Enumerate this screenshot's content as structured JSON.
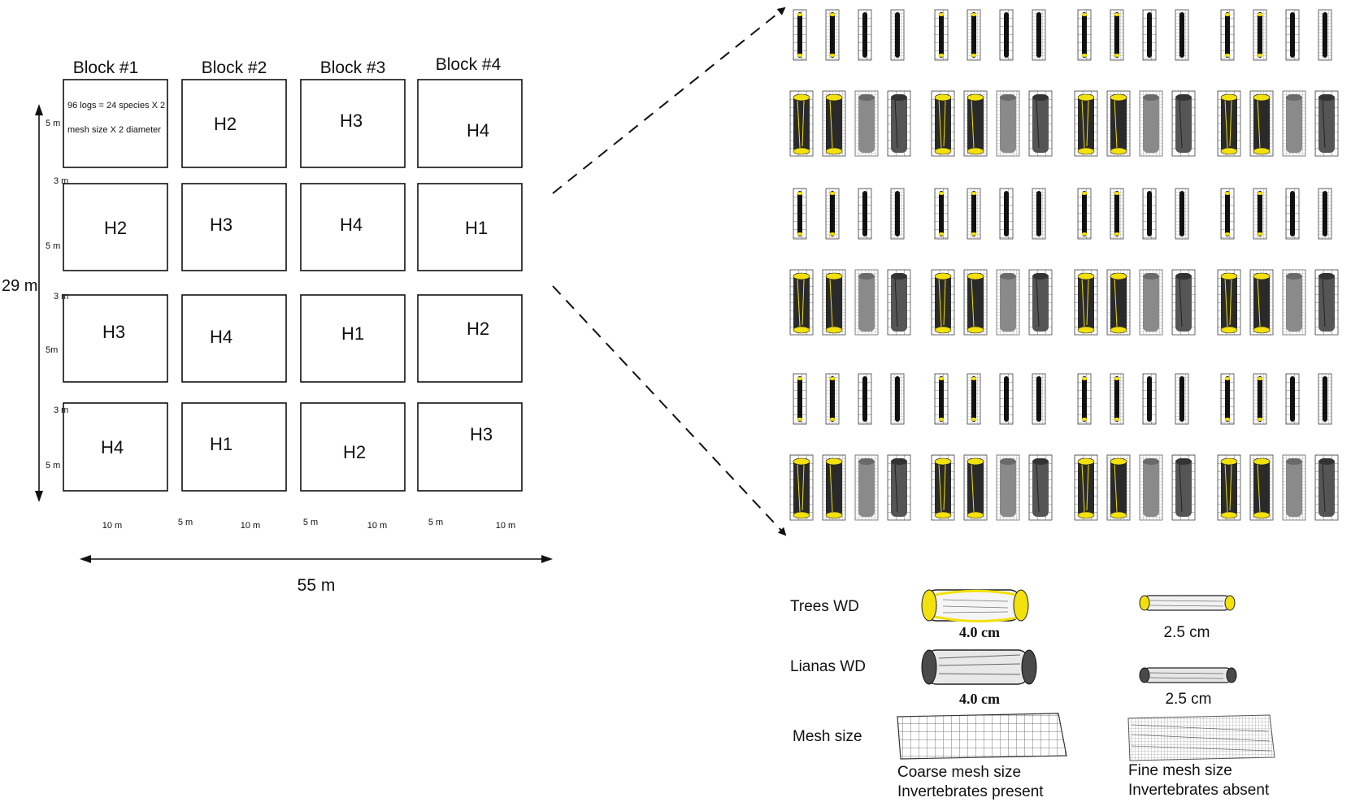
{
  "layout_panel": {
    "blocks": [
      {
        "title": "Block #1",
        "plots": [
          "",
          "H2",
          "H3",
          "H4"
        ],
        "note_lines": [
          "96 logs = 24 species X 2",
          "mesh size X 2 diameter"
        ]
      },
      {
        "title": "Block #2",
        "plots": [
          "H2",
          "H3",
          "H4",
          "H1"
        ]
      },
      {
        "title": "Block #3",
        "plots": [
          "H3",
          "H4",
          "H1",
          "H2"
        ]
      },
      {
        "title": "Block #4",
        "plots": [
          "H4",
          "H1",
          "H2",
          "H3"
        ]
      }
    ],
    "row_heights": [
      "5 m",
      "5 m",
      "5m",
      "5 m"
    ],
    "row_gaps": [
      "3 m",
      "3 m",
      "3 m"
    ],
    "column_widths": [
      "10 m",
      "10 m",
      "10 m",
      "10 m"
    ],
    "column_gaps": [
      "5 m",
      "5 m",
      "5 m"
    ],
    "total_height": "29 m",
    "total_width": "55 m"
  },
  "legend": {
    "trees_label": "Trees WD",
    "lianas_label": "Lianas WD",
    "mesh_label": "Mesh size",
    "large_diameter": "4.0 cm",
    "small_diameter": "2.5 cm",
    "coarse_line1": "Coarse mesh size",
    "coarse_line2": "Invertebrates present",
    "fine_line1": "Fine mesh size",
    "fine_line2": "Invertebrates absent"
  },
  "colors": {
    "tree_wood": "#f2e10c",
    "liana_wood": "#4a4a4a",
    "mesh_line": "#555555"
  }
}
